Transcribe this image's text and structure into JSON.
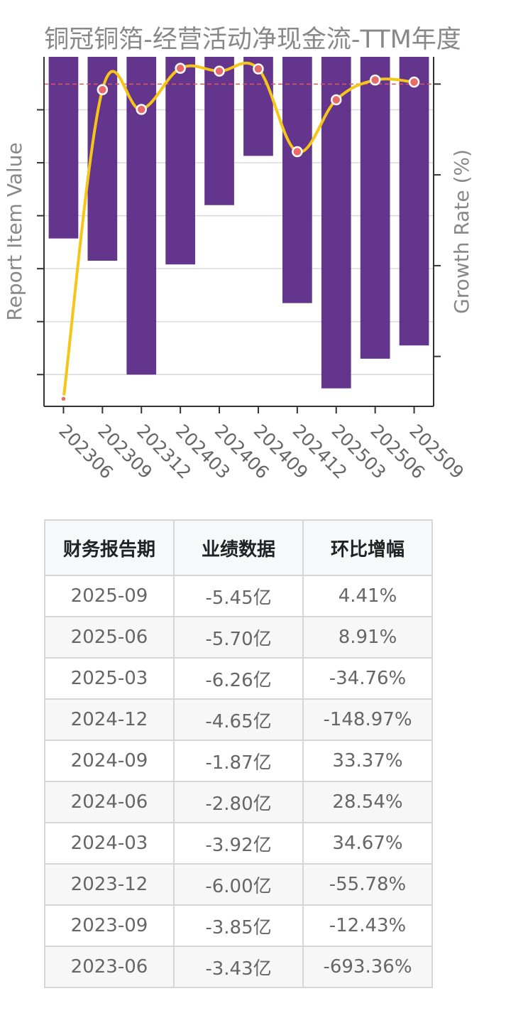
{
  "chart_data": {
    "type": "bar",
    "title": "铜冠铜箔-经营活动净现金流-TTM年度",
    "ylabel": "Report Item Value",
    "y2label": "Growth Rate (%)",
    "categories": [
      "202306",
      "202309",
      "202312",
      "202403",
      "202406",
      "202409",
      "202412",
      "202503",
      "202506",
      "202509"
    ],
    "series": [
      {
        "type": "bar",
        "values": [
          -3.43,
          -3.85,
          -6.0,
          -3.92,
          -2.8,
          -1.87,
          -4.65,
          -6.26,
          -5.7,
          -5.45
        ],
        "color": "#5b2a86"
      },
      {
        "type": "line",
        "values": [
          -693.36,
          -12.43,
          -55.78,
          34.67,
          28.54,
          33.37,
          -148.97,
          -34.76,
          8.91,
          4.41
        ],
        "color": "#f5c518",
        "marker_color": "#e86a6a"
      }
    ],
    "reference_line": {
      "value": 0,
      "axis": "y2",
      "color": "#e05757",
      "style": "dashed"
    },
    "ylim": [
      -6.6,
      0
    ],
    "y2lim": [
      -710,
      60
    ],
    "grid": true
  },
  "table": {
    "headers": [
      "财务报告期",
      "业绩数据",
      "环比增幅"
    ],
    "rows": [
      [
        "2025-09",
        "-5.45亿",
        "4.41%"
      ],
      [
        "2025-06",
        "-5.70亿",
        "8.91%"
      ],
      [
        "2025-03",
        "-6.26亿",
        "-34.76%"
      ],
      [
        "2024-12",
        "-4.65亿",
        "-148.97%"
      ],
      [
        "2024-09",
        "-1.87亿",
        "33.37%"
      ],
      [
        "2024-06",
        "-2.80亿",
        "28.54%"
      ],
      [
        "2024-03",
        "-3.92亿",
        "34.67%"
      ],
      [
        "2023-12",
        "-6.00亿",
        "-55.78%"
      ],
      [
        "2023-09",
        "-3.85亿",
        "-12.43%"
      ],
      [
        "2023-06",
        "-3.43亿",
        "-693.36%"
      ]
    ]
  }
}
